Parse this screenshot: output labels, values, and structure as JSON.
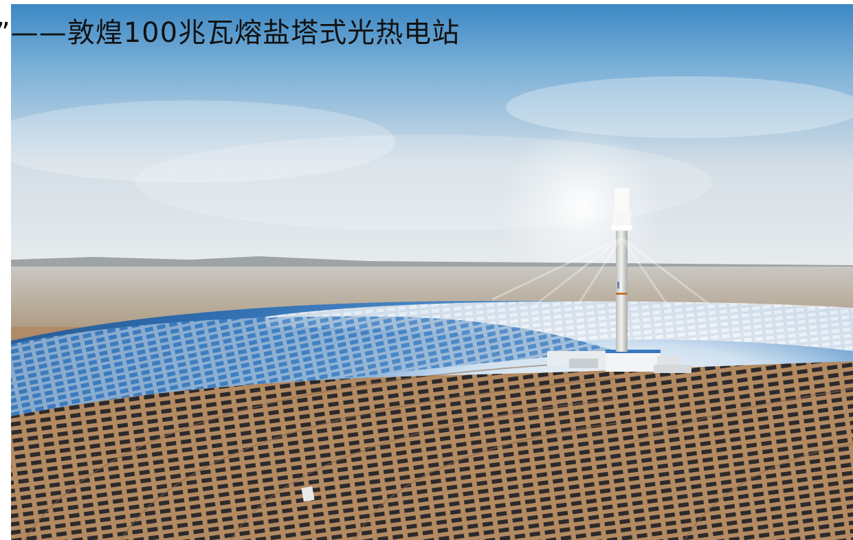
{
  "caption": "”——敦煌100兆瓦熔盐塔式光热电站",
  "scene": {
    "sky_top": "#4b93c9",
    "sky_horizon": "#dde6ec",
    "desert": "#9a7a5c",
    "mirror_blue": "#3f7fc2",
    "mirror_white": "#eef3f8",
    "tower": "#e4e4e2"
  }
}
